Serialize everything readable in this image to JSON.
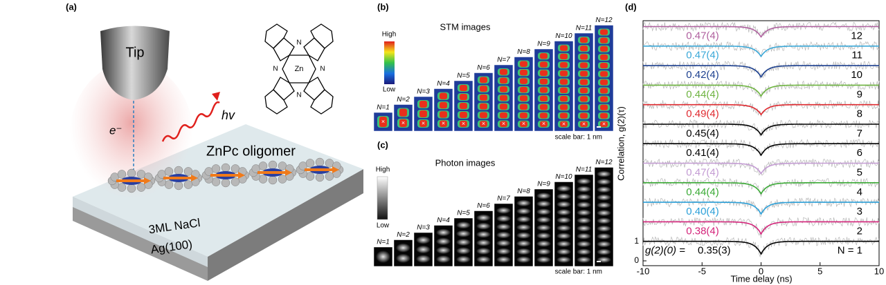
{
  "figure": {
    "panel_a": {
      "label": "(a)",
      "tip": "Tip",
      "electron": "e⁻",
      "photon": "hv",
      "metal": "Zn",
      "nitrogen": "N",
      "oligomer": "ZnPc oligomer",
      "layer1": "3ML NaCl",
      "layer2": "Ag(100)"
    },
    "panel_b": {
      "label": "(b)",
      "title": "STM images",
      "colorbar_high": "High",
      "colorbar_low": "Low",
      "scale_bar": "scale bar: 1 nm",
      "image_labels": [
        "N=1",
        "N=2",
        "N=3",
        "N=4",
        "N=5",
        "N=6",
        "N=7",
        "N=8",
        "N=9",
        "N=10",
        "N=11",
        "N=12"
      ]
    },
    "panel_c": {
      "label": "(c)",
      "title": "Photon images",
      "colorbar_high": "High",
      "colorbar_low": "Low",
      "scale_bar": "scale bar: 1 nm",
      "image_labels": [
        "N=1",
        "N=2",
        "N=3",
        "N=4",
        "N=5",
        "N=6",
        "N=7",
        "N=8",
        "N=9",
        "N=10",
        "N=11",
        "N=12"
      ]
    },
    "panel_d_label": "(d)"
  },
  "chart_data": {
    "type": "line",
    "xlabel": "Time delay (ns)",
    "ylabel": "Correlation, g(2)(τ)",
    "annotation": "g(2)(0) =",
    "xlim": [
      -10,
      10
    ],
    "xticks": [
      -10,
      -5,
      0,
      5,
      10
    ],
    "ylim": [
      0,
      12.3
    ],
    "yticks": [
      0,
      1
    ],
    "series": [
      {
        "name": "N = 1",
        "color": "#000000",
        "value": 0.35,
        "value_label": "0.35(3)"
      },
      {
        "name": "2",
        "color": "#d4237a",
        "value": 0.38,
        "value_label": "0.38(4)"
      },
      {
        "name": "3",
        "color": "#2a9fd8",
        "value": 0.4,
        "value_label": "0.40(4)"
      },
      {
        "name": "4",
        "color": "#3aaa35",
        "value": 0.44,
        "value_label": "0.44(4)"
      },
      {
        "name": "5",
        "color": "#c39bd3",
        "value": 0.47,
        "value_label": "0.47(4)"
      },
      {
        "name": "6",
        "color": "#000000",
        "value": 0.41,
        "value_label": "0.41(4)"
      },
      {
        "name": "7",
        "color": "#000000",
        "value": 0.45,
        "value_label": "0.45(4)"
      },
      {
        "name": "8",
        "color": "#e0282e",
        "value": 0.49,
        "value_label": "0.49(4)"
      },
      {
        "name": "9",
        "color": "#6db33f",
        "value": 0.44,
        "value_label": "0.44(4)"
      },
      {
        "name": "10",
        "color": "#1b3f8f",
        "value": 0.42,
        "value_label": "0.42(4)"
      },
      {
        "name": "11",
        "color": "#3aa8d8",
        "value": 0.47,
        "value_label": "0.47(4)"
      },
      {
        "name": "12",
        "color": "#b0609f",
        "value": 0.47,
        "value_label": "0.47(4)"
      }
    ]
  }
}
